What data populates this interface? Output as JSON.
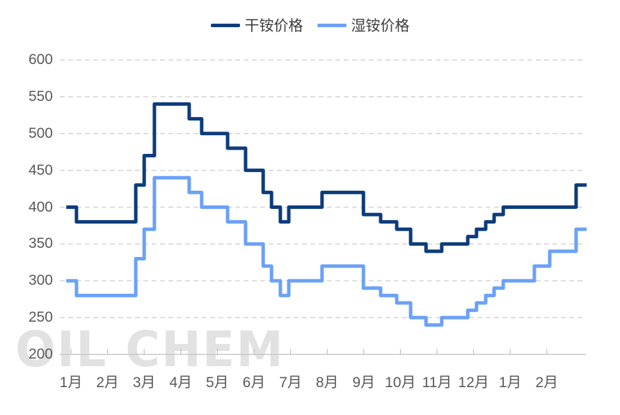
{
  "watermark": "OIL CHEM",
  "colors": {
    "background": "#ffffff",
    "grid": "#d3d3d3",
    "axis_line": "#c8c8c8",
    "tick": "#b5b5b5",
    "axis_label": "#595959",
    "legend_text": "#3c3c3c",
    "watermark_text": "#e2e2e2",
    "dark_series": "#0d3c7c",
    "light_series": "#6ba1f7"
  },
  "legend": {
    "items": [
      {
        "label": "干铵价格"
      },
      {
        "label": "湿铵价格"
      }
    ]
  },
  "chart_data": {
    "type": "line",
    "subtype": "step",
    "title": "",
    "xlabel": "",
    "ylabel": "",
    "ylim": [
      200,
      600
    ],
    "yticks": [
      600,
      550,
      500,
      450,
      400,
      350,
      300,
      250,
      200
    ],
    "x_categories": [
      "1月",
      "2月",
      "3月",
      "4月",
      "5月",
      "6月",
      "7月",
      "8月",
      "9月",
      "10月",
      "11月",
      "12月",
      "1月",
      "2月"
    ],
    "grid": "horizontal-dashed",
    "legend_position": "top-center",
    "x_unit_note": "x in month-index units; 0 = first 1月 tick, 13 = final 2月 tick",
    "series": [
      {
        "id": "dry-ammonium",
        "name": "干铵价格",
        "color": "#0d3c7c",
        "x_end": 14.09,
        "steps": [
          [
            -0.13,
            400
          ],
          [
            0.15,
            380
          ],
          [
            1.77,
            430
          ],
          [
            2.0,
            470
          ],
          [
            2.28,
            540
          ],
          [
            3.23,
            520
          ],
          [
            3.57,
            500
          ],
          [
            4.28,
            480
          ],
          [
            4.77,
            450
          ],
          [
            5.25,
            420
          ],
          [
            5.48,
            400
          ],
          [
            5.72,
            380
          ],
          [
            5.95,
            400
          ],
          [
            6.86,
            420
          ],
          [
            7.99,
            390
          ],
          [
            8.46,
            380
          ],
          [
            8.9,
            370
          ],
          [
            9.28,
            350
          ],
          [
            9.7,
            340
          ],
          [
            10.13,
            350
          ],
          [
            10.84,
            360
          ],
          [
            11.08,
            370
          ],
          [
            11.33,
            380
          ],
          [
            11.56,
            390
          ],
          [
            11.81,
            400
          ],
          [
            13.8,
            430
          ]
        ]
      },
      {
        "id": "wet-ammonium",
        "name": "湿铵价格",
        "color": "#6ba1f7",
        "x_end": 14.09,
        "steps": [
          [
            -0.13,
            300
          ],
          [
            0.15,
            280
          ],
          [
            1.77,
            330
          ],
          [
            2.0,
            370
          ],
          [
            2.28,
            440
          ],
          [
            3.23,
            420
          ],
          [
            3.57,
            400
          ],
          [
            4.28,
            380
          ],
          [
            4.77,
            350
          ],
          [
            5.25,
            320
          ],
          [
            5.48,
            300
          ],
          [
            5.72,
            280
          ],
          [
            5.95,
            300
          ],
          [
            6.86,
            320
          ],
          [
            7.99,
            290
          ],
          [
            8.46,
            280
          ],
          [
            8.9,
            270
          ],
          [
            9.28,
            250
          ],
          [
            9.7,
            240
          ],
          [
            10.13,
            250
          ],
          [
            10.84,
            260
          ],
          [
            11.08,
            270
          ],
          [
            11.33,
            280
          ],
          [
            11.56,
            290
          ],
          [
            11.81,
            300
          ],
          [
            12.66,
            320
          ],
          [
            13.08,
            340
          ],
          [
            13.8,
            370
          ]
        ]
      }
    ]
  }
}
